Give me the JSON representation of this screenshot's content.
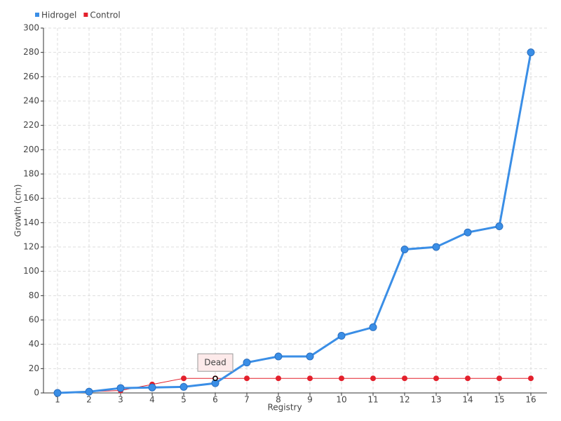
{
  "chart_data": {
    "type": "line",
    "x_label": "Registry",
    "y_label": "Growth (cm)",
    "categories": [
      "1",
      "2",
      "3",
      "4",
      "5",
      "6",
      "7",
      "8",
      "9",
      "10",
      "11",
      "12",
      "13",
      "14",
      "15",
      "16"
    ],
    "series": [
      {
        "name": "Hidrogel",
        "color": "#3a8ee6",
        "values": [
          0,
          1,
          4,
          4.5,
          5,
          8,
          25,
          30,
          30,
          47,
          54,
          118,
          120,
          132,
          137,
          280
        ]
      },
      {
        "name": "Control",
        "color": "#e3202c",
        "values": [
          0,
          1,
          2,
          7,
          12,
          12,
          12,
          12,
          12,
          12,
          12,
          12,
          12,
          12,
          12,
          12
        ]
      }
    ],
    "annotation": "Dead",
    "ylim": [
      0,
      300
    ],
    "yticks": [
      0,
      20,
      40,
      60,
      80,
      100,
      120,
      140,
      160,
      180,
      200,
      220,
      240,
      260,
      280,
      300
    ],
    "grid": true,
    "legend": "top-left"
  }
}
